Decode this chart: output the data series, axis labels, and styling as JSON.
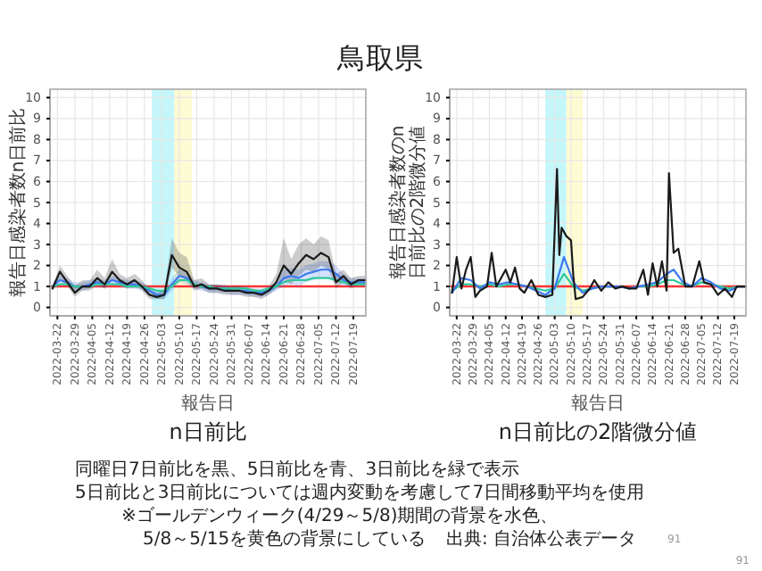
{
  "chart_data": [
    {
      "type": "line",
      "title": "鳥取県",
      "subtitle": "n日前比",
      "xlabel": "報告日",
      "ylabel": "報告日感染者数n日前比",
      "x": [
        "2022-03-20",
        "2022-03-23",
        "2022-03-26",
        "2022-03-29",
        "2022-04-01",
        "2022-04-04",
        "2022-04-07",
        "2022-04-10",
        "2022-04-13",
        "2022-04-16",
        "2022-04-19",
        "2022-04-22",
        "2022-04-25",
        "2022-04-28",
        "2022-05-01",
        "2022-05-04",
        "2022-05-07",
        "2022-05-10",
        "2022-05-13",
        "2022-05-16",
        "2022-05-19",
        "2022-05-22",
        "2022-05-25",
        "2022-05-28",
        "2022-05-31",
        "2022-06-03",
        "2022-06-06",
        "2022-06-09",
        "2022-06-12",
        "2022-06-15",
        "2022-06-18",
        "2022-06-21",
        "2022-06-24",
        "2022-06-27",
        "2022-06-30",
        "2022-07-03",
        "2022-07-06",
        "2022-07-09",
        "2022-07-12",
        "2022-07-15",
        "2022-07-18",
        "2022-07-21",
        "2022-07-24"
      ],
      "xlim": [
        "2022-03-19",
        "2022-07-24"
      ],
      "xticks": [
        "2022-03-22",
        "2022-03-29",
        "2022-04-05",
        "2022-04-12",
        "2022-04-19",
        "2022-04-26",
        "2022-05-03",
        "2022-05-10",
        "2022-05-17",
        "2022-05-24",
        "2022-05-31",
        "2022-06-07",
        "2022-06-14",
        "2022-06-21",
        "2022-06-28",
        "2022-07-05",
        "2022-07-12",
        "2022-07-19"
      ],
      "ylim": [
        -0.4,
        10.4
      ],
      "yticks": [
        0,
        1,
        2,
        3,
        4,
        5,
        6,
        7,
        8,
        9,
        10
      ],
      "grid": true,
      "bands": [
        {
          "axis": "x",
          "from": "2022-04-29",
          "to": "2022-05-08",
          "color": "#c4f6fa"
        },
        {
          "axis": "x",
          "from": "2022-05-08",
          "to": "2022-05-15",
          "color": "#fdfbd2"
        }
      ],
      "ref_lines": [
        {
          "axis": "y",
          "value": 1,
          "color": "#ff3333"
        }
      ],
      "series": [
        {
          "color": "#3c78f0",
          "values": [
            1.0,
            1.3,
            1.2,
            1.0,
            1.0,
            1.1,
            1.2,
            1.1,
            1.3,
            1.2,
            1.1,
            1.1,
            1.0,
            0.8,
            0.6,
            0.6,
            1.1,
            1.5,
            1.4,
            1.1,
            1.0,
            0.9,
            0.9,
            0.9,
            0.8,
            0.8,
            0.8,
            0.7,
            0.7,
            0.8,
            1.0,
            1.4,
            1.5,
            1.4,
            1.6,
            1.7,
            1.8,
            1.8,
            1.6,
            1.3,
            1.2,
            1.2,
            1.2
          ],
          "lower": [
            0.8,
            1.1,
            1.0,
            0.8,
            0.8,
            0.9,
            1.0,
            0.9,
            1.1,
            1.0,
            0.9,
            0.9,
            0.8,
            0.6,
            0.4,
            0.4,
            0.8,
            1.2,
            1.1,
            0.9,
            0.8,
            0.7,
            0.7,
            0.7,
            0.6,
            0.6,
            0.6,
            0.5,
            0.5,
            0.6,
            0.8,
            1.0,
            1.1,
            1.0,
            1.2,
            1.3,
            1.4,
            1.4,
            1.2,
            1.0,
            1.0,
            1.0,
            1.0
          ],
          "upper": [
            1.2,
            1.5,
            1.4,
            1.2,
            1.2,
            1.3,
            1.4,
            1.3,
            1.5,
            1.4,
            1.3,
            1.3,
            1.2,
            1.0,
            0.8,
            0.8,
            1.4,
            1.8,
            1.7,
            1.3,
            1.2,
            1.1,
            1.1,
            1.1,
            1.0,
            1.0,
            1.0,
            0.9,
            0.9,
            1.0,
            1.2,
            1.8,
            1.9,
            1.8,
            2.0,
            2.1,
            2.2,
            2.2,
            2.0,
            1.6,
            1.4,
            1.4,
            1.4
          ]
        },
        {
          "color": "#2fc89a",
          "values": [
            1.0,
            1.1,
            1.1,
            1.0,
            1.0,
            1.0,
            1.1,
            1.1,
            1.1,
            1.1,
            1.0,
            1.0,
            1.0,
            0.9,
            0.8,
            0.8,
            1.0,
            1.3,
            1.3,
            1.1,
            1.0,
            1.0,
            0.9,
            0.9,
            0.9,
            0.9,
            0.9,
            0.8,
            0.8,
            0.9,
            1.0,
            1.2,
            1.3,
            1.3,
            1.3,
            1.4,
            1.4,
            1.4,
            1.3,
            1.2,
            1.1,
            1.1,
            1.1
          ]
        },
        {
          "color": "#1a1a1a",
          "values": [
            0.9,
            1.7,
            1.2,
            0.7,
            1.0,
            1.0,
            1.4,
            1.1,
            1.7,
            1.3,
            1.1,
            1.3,
            1.0,
            0.6,
            0.5,
            0.6,
            2.5,
            1.9,
            1.7,
            1.0,
            1.1,
            0.9,
            0.9,
            0.8,
            0.8,
            0.8,
            0.7,
            0.7,
            0.6,
            0.8,
            1.2,
            2.0,
            1.6,
            2.1,
            2.5,
            2.3,
            2.6,
            2.4,
            1.2,
            1.5,
            1.1,
            1.3,
            1.3
          ],
          "lower": [
            0.8,
            1.3,
            1.0,
            0.5,
            0.8,
            0.8,
            1.1,
            0.9,
            1.3,
            1.1,
            0.9,
            1.1,
            0.8,
            0.4,
            0.4,
            0.4,
            1.9,
            1.5,
            1.3,
            0.8,
            0.9,
            0.7,
            0.7,
            0.6,
            0.6,
            0.6,
            0.5,
            0.5,
            0.4,
            0.6,
            0.9,
            1.3,
            1.1,
            1.5,
            1.8,
            1.7,
            2.0,
            1.8,
            0.9,
            1.2,
            0.9,
            1.1,
            1.1
          ],
          "upper": [
            1.0,
            2.0,
            1.5,
            1.0,
            1.3,
            1.3,
            1.8,
            1.4,
            2.3,
            1.6,
            1.4,
            1.6,
            1.3,
            0.8,
            0.7,
            0.8,
            3.3,
            2.6,
            2.4,
            1.3,
            1.4,
            1.1,
            1.1,
            1.0,
            1.0,
            1.0,
            0.9,
            0.9,
            0.8,
            1.0,
            1.6,
            3.3,
            2.3,
            3.0,
            3.3,
            3.0,
            3.4,
            3.2,
            1.6,
            1.8,
            1.4,
            1.5,
            1.5
          ]
        }
      ],
      "annotations": [
        "同曜日7日前比を黒、5日前比を青、3日前比を緑で表示",
        "5日前比と3日前比については週内変動を考慮して7日間移動平均を使用",
        "※ゴールデンウィーク(4/29～5/8)期間の背景を水色、",
        "5/8～5/15を黄色の背景にしている",
        "出典: 自治体公表データ",
        "91",
        "91"
      ]
    },
    {
      "type": "line",
      "subtitle": "n日前比の2階微分値",
      "xlabel": "報告日",
      "ylabel": "報告日感染者数のn日前比の2階微分値",
      "xlim": [
        "2022-03-19",
        "2022-07-24"
      ],
      "xticks": [
        "2022-03-22",
        "2022-03-29",
        "2022-04-05",
        "2022-04-12",
        "2022-04-19",
        "2022-04-26",
        "2022-05-03",
        "2022-05-10",
        "2022-05-17",
        "2022-05-24",
        "2022-05-31",
        "2022-06-07",
        "2022-06-14",
        "2022-06-21",
        "2022-06-28",
        "2022-07-05",
        "2022-07-12",
        "2022-07-19"
      ],
      "ylim": [
        -0.4,
        10.4
      ],
      "yticks": [
        0,
        1,
        2,
        3,
        4,
        5,
        6,
        7,
        8,
        9,
        10
      ],
      "grid": true,
      "bands": [
        {
          "axis": "x",
          "from": "2022-04-29",
          "to": "2022-05-08",
          "color": "#c4f6fa"
        },
        {
          "axis": "x",
          "from": "2022-05-08",
          "to": "2022-05-15",
          "color": "#fdfbd2"
        }
      ],
      "ref_lines": [
        {
          "axis": "y",
          "value": 1,
          "color": "#ff3333"
        }
      ],
      "series": [
        {
          "color": "#2fc89a",
          "x": [
            "2022-03-20",
            "2022-03-24",
            "2022-03-28",
            "2022-04-01",
            "2022-04-05",
            "2022-04-09",
            "2022-04-13",
            "2022-04-17",
            "2022-04-21",
            "2022-04-25",
            "2022-04-29",
            "2022-05-03",
            "2022-05-07",
            "2022-05-11",
            "2022-05-15",
            "2022-05-19",
            "2022-05-23",
            "2022-05-27",
            "2022-05-31",
            "2022-06-04",
            "2022-06-08",
            "2022-06-12",
            "2022-06-16",
            "2022-06-20",
            "2022-06-23",
            "2022-06-27",
            "2022-07-01",
            "2022-07-05",
            "2022-07-09",
            "2022-07-13",
            "2022-07-17",
            "2022-07-21",
            "2022-07-24"
          ],
          "values": [
            0.8,
            1.1,
            1.1,
            1.0,
            1.1,
            1.0,
            1.1,
            1.1,
            1.0,
            0.9,
            0.8,
            0.9,
            1.6,
            1.0,
            0.8,
            0.9,
            1.0,
            1.0,
            1.0,
            0.9,
            1.0,
            1.0,
            1.1,
            1.3,
            1.3,
            1.1,
            1.0,
            1.2,
            1.1,
            1.0,
            0.9,
            1.0,
            1.0
          ]
        },
        {
          "color": "#3c78f0",
          "x": [
            "2022-03-20",
            "2022-03-24",
            "2022-03-28",
            "2022-04-01",
            "2022-04-05",
            "2022-04-09",
            "2022-04-13",
            "2022-04-17",
            "2022-04-21",
            "2022-04-25",
            "2022-04-29",
            "2022-05-03",
            "2022-05-07",
            "2022-05-11",
            "2022-05-15",
            "2022-05-19",
            "2022-05-23",
            "2022-05-27",
            "2022-05-31",
            "2022-06-04",
            "2022-06-08",
            "2022-06-12",
            "2022-06-16",
            "2022-06-20",
            "2022-06-23",
            "2022-06-27",
            "2022-07-01",
            "2022-07-05",
            "2022-07-09",
            "2022-07-13",
            "2022-07-17",
            "2022-07-21",
            "2022-07-24"
          ],
          "values": [
            0.7,
            1.4,
            1.3,
            0.9,
            1.2,
            1.1,
            1.2,
            1.1,
            1.0,
            0.8,
            0.6,
            0.9,
            2.4,
            1.2,
            0.7,
            0.9,
            1.0,
            1.0,
            1.0,
            0.9,
            1.0,
            1.1,
            1.2,
            1.6,
            1.8,
            1.2,
            1.0,
            1.4,
            1.2,
            0.9,
            0.8,
            1.0,
            1.0
          ]
        },
        {
          "color": "#1a1a1a",
          "x": [
            "2022-03-20",
            "2022-03-22",
            "2022-03-24",
            "2022-03-26",
            "2022-03-28",
            "2022-03-30",
            "2022-04-01",
            "2022-04-04",
            "2022-04-06",
            "2022-04-08",
            "2022-04-10",
            "2022-04-12",
            "2022-04-14",
            "2022-04-16",
            "2022-04-18",
            "2022-04-20",
            "2022-04-23",
            "2022-04-26",
            "2022-04-29",
            "2022-05-02",
            "2022-05-04",
            "2022-05-05",
            "2022-05-06",
            "2022-05-08",
            "2022-05-10",
            "2022-05-11",
            "2022-05-12",
            "2022-05-15",
            "2022-05-18",
            "2022-05-20",
            "2022-05-23",
            "2022-05-26",
            "2022-05-29",
            "2022-06-01",
            "2022-06-04",
            "2022-06-07",
            "2022-06-10",
            "2022-06-12",
            "2022-06-14",
            "2022-06-16",
            "2022-06-18",
            "2022-06-20",
            "2022-06-21",
            "2022-06-23",
            "2022-06-25",
            "2022-06-28",
            "2022-07-01",
            "2022-07-04",
            "2022-07-06",
            "2022-07-09",
            "2022-07-12",
            "2022-07-15",
            "2022-07-18",
            "2022-07-20",
            "2022-07-24"
          ],
          "values": [
            0.7,
            2.4,
            0.9,
            1.8,
            2.4,
            0.5,
            0.8,
            1.0,
            2.6,
            1.0,
            1.4,
            1.8,
            1.2,
            1.9,
            0.9,
            0.7,
            1.3,
            0.6,
            0.5,
            0.6,
            6.6,
            2.5,
            3.8,
            3.4,
            3.2,
            1.5,
            0.4,
            0.5,
            0.9,
            1.3,
            0.8,
            1.2,
            0.9,
            1.0,
            0.9,
            0.9,
            1.8,
            0.6,
            2.1,
            1.0,
            2.2,
            0.8,
            6.4,
            2.6,
            2.8,
            1.0,
            1.0,
            2.2,
            1.2,
            1.1,
            0.6,
            0.9,
            0.5,
            1.0,
            1.0
          ]
        }
      ]
    }
  ]
}
